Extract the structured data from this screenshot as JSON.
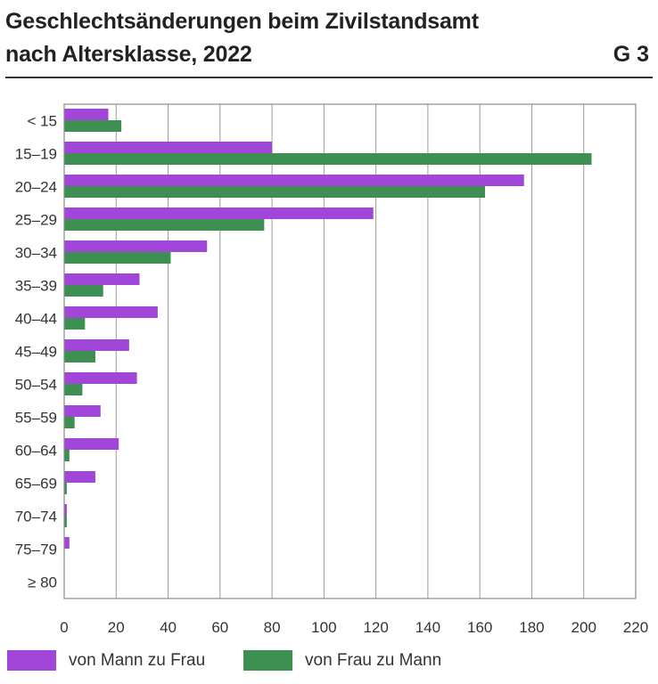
{
  "header": {
    "title_line1": "Geschlechtsänderungen beim Zivilstandsamt",
    "title_line2": "nach Altersklasse, 2022",
    "figure_number": "G 3"
  },
  "chart_data": {
    "type": "bar",
    "orientation": "horizontal",
    "title": "Geschlechtsänderungen beim Zivilstandsamt nach Altersklasse, 2022",
    "xlabel": "",
    "ylabel": "",
    "categories": [
      "< 15",
      "15–19",
      "20–24",
      "25–29",
      "30–34",
      "35–39",
      "40–44",
      "45–49",
      "50–54",
      "55–59",
      "60–64",
      "65–69",
      "70–74",
      "75–79",
      "≥ 80"
    ],
    "series": [
      {
        "name": "von Mann zu Frau",
        "color": "#a245d9",
        "values": [
          17,
          80,
          177,
          119,
          55,
          29,
          36,
          25,
          28,
          14,
          21,
          12,
          1,
          2,
          0
        ]
      },
      {
        "name": "von Frau zu Mann",
        "color": "#3d8f52",
        "values": [
          22,
          203,
          162,
          77,
          41,
          15,
          8,
          12,
          7,
          4,
          2,
          1,
          1,
          0,
          0
        ]
      }
    ],
    "xlim": [
      0,
      220
    ],
    "xticks": [
      "0",
      "20",
      "40",
      "60",
      "80",
      "100",
      "120",
      "140",
      "160",
      "180",
      "200",
      "220"
    ],
    "grid": true,
    "legend_position": "bottom"
  }
}
